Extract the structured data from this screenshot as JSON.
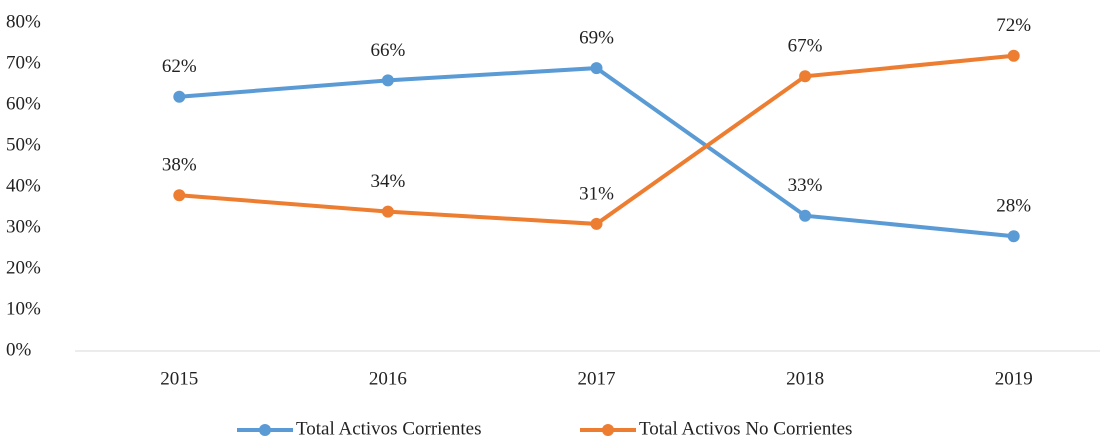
{
  "chart_data": {
    "type": "line",
    "categories": [
      "2015",
      "2016",
      "2017",
      "2018",
      "2019"
    ],
    "series": [
      {
        "name": "Total Activos Corrientes",
        "color": "#5b9bd5",
        "values": [
          62,
          66,
          69,
          33,
          28
        ],
        "value_labels": [
          "62%",
          "66%",
          "69%",
          "33%",
          "28%"
        ]
      },
      {
        "name": "Total Activos No Corrientes",
        "color": "#ed7d31",
        "values": [
          38,
          34,
          31,
          67,
          72
        ],
        "value_labels": [
          "38%",
          "34%",
          "31%",
          "67%",
          "72%"
        ]
      }
    ],
    "ylim": [
      0,
      80
    ],
    "yticks": [
      {
        "value": 0,
        "label": "0%"
      },
      {
        "value": 10,
        "label": "10%"
      },
      {
        "value": 20,
        "label": "20%"
      },
      {
        "value": 30,
        "label": "30%"
      },
      {
        "value": 40,
        "label": "40%"
      },
      {
        "value": 50,
        "label": "50%"
      },
      {
        "value": 60,
        "label": "60%"
      },
      {
        "value": 70,
        "label": "70%"
      },
      {
        "value": 80,
        "label": "80%"
      }
    ],
    "grid": false,
    "legend": "bottom"
  }
}
